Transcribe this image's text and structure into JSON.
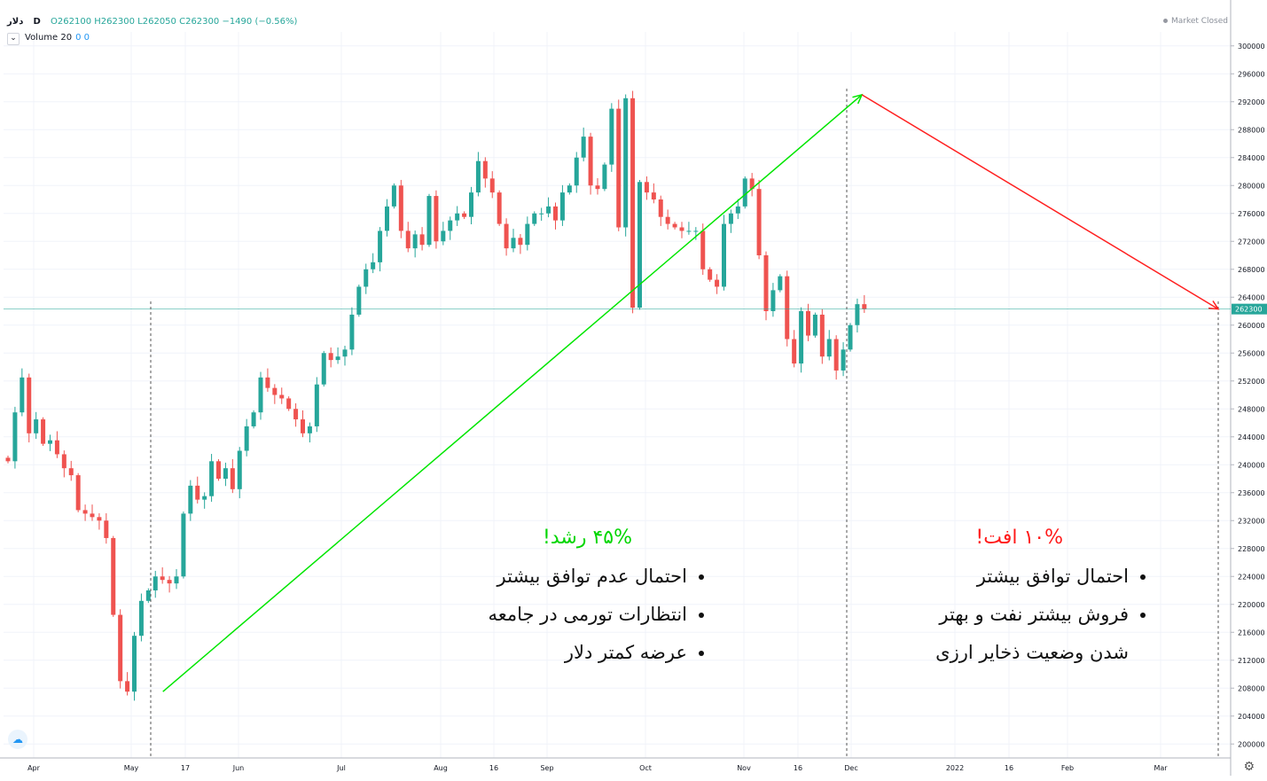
{
  "header": {
    "symbol": "دلار",
    "interval": "D",
    "open": "O262100",
    "high": "H262300",
    "low": "L262050",
    "close": "C262300",
    "change": "−1490 (−0.56%)",
    "volume_label": "Volume 20",
    "volume_values": "0  0",
    "market_status": "Market Closed"
  },
  "colors": {
    "up": "#26a69a",
    "down": "#ef5350",
    "growth": "#00e600",
    "decline": "#ff2020",
    "price_line": "#26a69a",
    "grid": "#f0f3fa"
  },
  "left_annotation": {
    "title": "۴۵% رشد!",
    "items": [
      "احتمال عدم توافق بیشتر",
      "انتظارات تورمی در جامعه",
      "عرضه کمتر دلار"
    ]
  },
  "right_annotation": {
    "title": "۱۰% افت!",
    "items": [
      "احتمال توافق بیشتر",
      "فروش بیشتر نفت و بهتر"
    ],
    "continuation": "شدن وضعیت ذخایر ارزی"
  },
  "chart_data": {
    "type": "candlestick",
    "ylim": [
      198000,
      302000
    ],
    "y_ticks": [
      "300000",
      "296000",
      "292000",
      "288000",
      "284000",
      "280000",
      "276000",
      "272000",
      "268000",
      "264000",
      "260000",
      "256000",
      "252000",
      "248000",
      "244000",
      "240000",
      "236000",
      "232000",
      "228000",
      "224000",
      "220000",
      "216000",
      "212000",
      "208000",
      "204000",
      "200000"
    ],
    "x_ticks": [
      "Apr",
      "May",
      "17",
      "Jun",
      "Jul",
      "Aug",
      "16",
      "Sep",
      "Oct",
      "Nov",
      "16",
      "Dec",
      "2022",
      "16",
      "Feb",
      "Mar"
    ],
    "last_price": "262300",
    "closes": [
      240500,
      247500,
      252500,
      244500,
      246500,
      243000,
      243500,
      241500,
      239500,
      238500,
      233500,
      233000,
      232500,
      232000,
      229500,
      218500,
      209000,
      207500,
      215500,
      220500,
      222000,
      224000,
      223500,
      223000,
      224000,
      233000,
      237000,
      235000,
      235500,
      240500,
      238000,
      239500,
      236500,
      242000,
      245500,
      247500,
      252500,
      251000,
      250000,
      249500,
      248000,
      246500,
      244500,
      245500,
      251500,
      256000,
      255000,
      255500,
      256500,
      261500,
      265500,
      268000,
      269000,
      273500,
      277000,
      280000,
      273500,
      271000,
      273000,
      271500,
      278500,
      272000,
      273500,
      275000,
      276000,
      275500,
      279000,
      283500,
      281000,
      279000,
      274500,
      271000,
      272500,
      271500,
      274500,
      276000,
      276000,
      277000,
      275000,
      279000,
      280000,
      284000,
      287000,
      280000,
      279500,
      283000,
      291000,
      274000,
      292500,
      262500,
      280500,
      279000,
      278000,
      275500,
      274500,
      274000,
      273500,
      273500,
      273500,
      268000,
      266500,
      265500,
      274500,
      276000,
      277000,
      281000,
      279500,
      270000,
      262000,
      265000,
      267000,
      258000,
      254500,
      262000,
      258500,
      261500,
      255500,
      258000,
      253500,
      256500,
      260000,
      263000,
      262300
    ],
    "drawings": [
      {
        "name": "growth-trendline",
        "from": [
          "2021-05-10",
          207500
        ],
        "to": [
          "2021-11-30",
          293000
        ]
      },
      {
        "name": "decline-trendline",
        "from": [
          "2021-11-30",
          293000
        ],
        "to": [
          "2022-03-14",
          262300
        ]
      }
    ]
  }
}
